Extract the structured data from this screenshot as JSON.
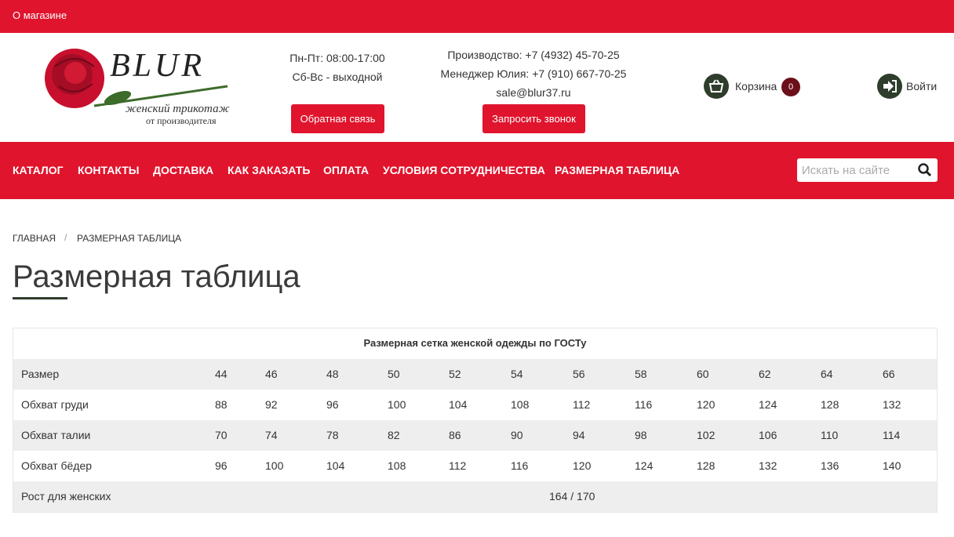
{
  "top_bar": {
    "link": "О магазине"
  },
  "logo": {
    "brand": "BLUR",
    "tagline": "женский трикотаж",
    "subtagline": "от производителя"
  },
  "hours": [
    "Пн-Пт: 08:00-17:00",
    "Сб-Вс - выходной"
  ],
  "feedback_button": "Обратная связь",
  "contacts": [
    "Производство: +7 (4932) 45-70-25",
    "Менеджер Юлия: +7 (910) 667-70-25",
    "sale@blur37.ru"
  ],
  "callback_button": "Запросить звонок",
  "cart": {
    "label": "Корзина",
    "count": 0
  },
  "login": "Войти",
  "nav": [
    "КАТАЛОГ",
    "КОНТАКТЫ",
    "ДОСТАВКА",
    "КАК ЗАКАЗАТЬ",
    "ОПЛАТА",
    "УСЛОВИЯ СОТРУДНИЧЕСТВА",
    "РАЗМЕРНАЯ ТАБЛИЦА"
  ],
  "search_placeholder": "Искать на сайте",
  "breadcrumb": {
    "items": [
      "ГЛАВНАЯ",
      "РАЗМЕРНАЯ ТАБЛИЦА"
    ],
    "separator": "/"
  },
  "title": "Размерная таблица",
  "table": {
    "caption": "Размерная сетка женской одежды по ГОСТу",
    "rows": [
      {
        "label": "Размер",
        "values": [
          44,
          46,
          48,
          50,
          52,
          54,
          56,
          58,
          60,
          62,
          64,
          66
        ]
      },
      {
        "label": "Обхват груди",
        "values": [
          88,
          92,
          96,
          100,
          104,
          108,
          112,
          116,
          120,
          124,
          128,
          132
        ]
      },
      {
        "label": "Обхват талии",
        "values": [
          70,
          74,
          78,
          82,
          86,
          90,
          94,
          98,
          102,
          106,
          110,
          114
        ]
      },
      {
        "label": "Обхват бёдер",
        "values": [
          96,
          100,
          104,
          108,
          112,
          116,
          120,
          124,
          128,
          132,
          136,
          140
        ]
      },
      {
        "label": "Рост для женских",
        "values": [
          "164 / 170"
        ]
      }
    ]
  }
}
